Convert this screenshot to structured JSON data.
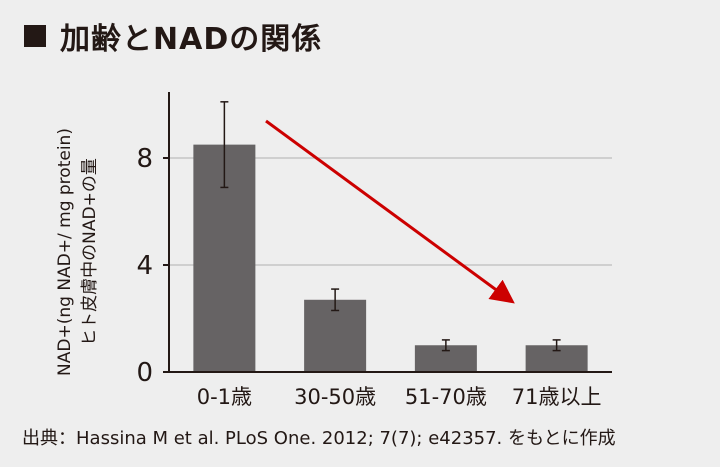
{
  "title": "加齢とNADの関係",
  "source": "出典：Hassina M et al. PLoS One. 2012; 7(7); e42357. をもとに作成",
  "chart_data": {
    "type": "bar",
    "categories": [
      "0-1歳",
      "30-50歳",
      "51-70歳",
      "71歳以上"
    ],
    "values": [
      8.5,
      2.7,
      1.0,
      1.0
    ],
    "errors": [
      1.6,
      0.4,
      0.2,
      0.2
    ],
    "ylabel_line1": "NAD+(ng NAD+/ mg protein)",
    "ylabel_line2": "ヒト皮膚中のNAD+の量",
    "ylim": [
      0,
      10
    ],
    "yticks": [
      0,
      4,
      8
    ],
    "grid": true,
    "colors": {
      "bar": "#666364",
      "arrow": "#cc0000",
      "grid": "#bdbdbd",
      "axis": "#231815"
    }
  }
}
